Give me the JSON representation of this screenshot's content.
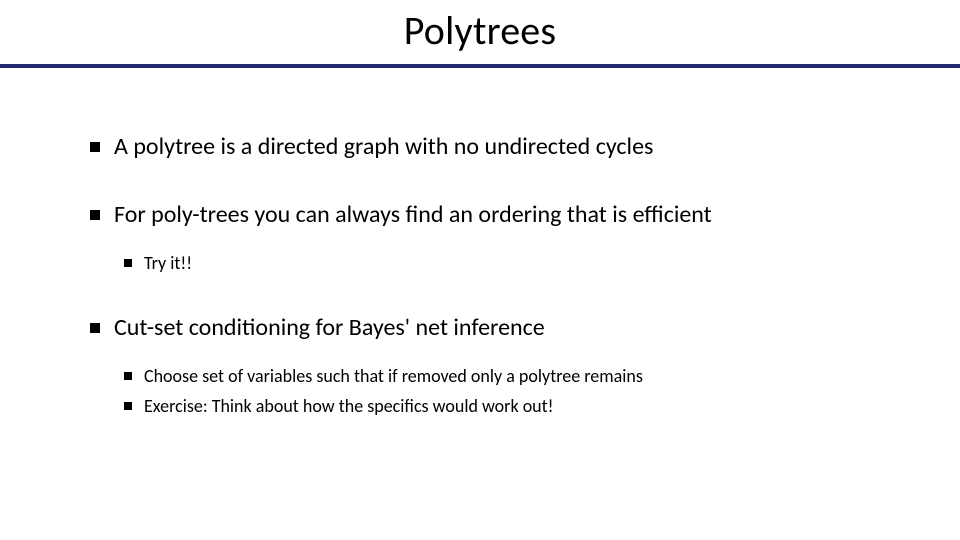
{
  "title": "Polytrees",
  "rule_color": "#1f2a6b",
  "background_color": "#ffffff",
  "text_color": "#000000",
  "fonts": {
    "family": "Calibri",
    "title_size_pt": 40,
    "body_size_pt": 24,
    "sub_size_pt": 18
  },
  "bullets": [
    {
      "text": "A polytree is a directed graph with no undirected cycles",
      "children": []
    },
    {
      "text": "For poly-trees you can always find an ordering that is efficient",
      "children": [
        {
          "text": "Try it!!"
        }
      ]
    },
    {
      "text": "Cut-set conditioning for Bayes' net inference",
      "children": [
        {
          "text": "Choose set of variables such that if removed only a polytree remains"
        },
        {
          "text": "Exercise: Think about how the specifics would work out!"
        }
      ]
    }
  ]
}
